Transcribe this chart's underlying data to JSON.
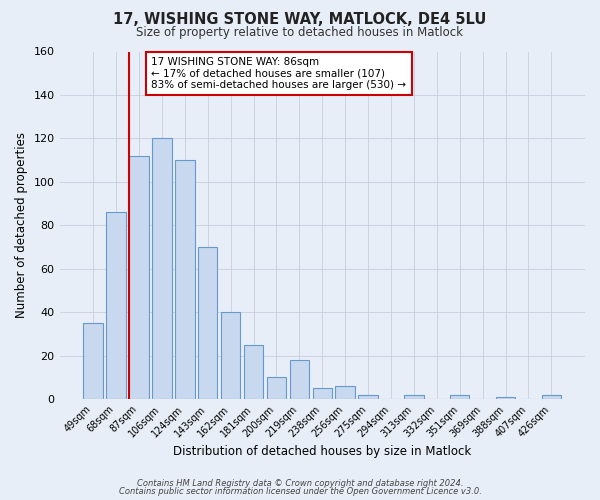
{
  "title": "17, WISHING STONE WAY, MATLOCK, DE4 5LU",
  "subtitle": "Size of property relative to detached houses in Matlock",
  "xlabel": "Distribution of detached houses by size in Matlock",
  "ylabel": "Number of detached properties",
  "bar_labels": [
    "49sqm",
    "68sqm",
    "87sqm",
    "106sqm",
    "124sqm",
    "143sqm",
    "162sqm",
    "181sqm",
    "200sqm",
    "219sqm",
    "238sqm",
    "256sqm",
    "275sqm",
    "294sqm",
    "313sqm",
    "332sqm",
    "351sqm",
    "369sqm",
    "388sqm",
    "407sqm",
    "426sqm"
  ],
  "bar_values": [
    35,
    86,
    112,
    120,
    110,
    70,
    40,
    25,
    10,
    18,
    5,
    6,
    2,
    0,
    2,
    0,
    2,
    0,
    1,
    0,
    2
  ],
  "bar_color": "#c8d8ee",
  "bar_edge_color": "#6699cc",
  "background_color": "#e8eef8",
  "grid_color": "#c8cede",
  "vline_x_index": 2,
  "vline_color": "#cc0000",
  "annotation_line1": "17 WISHING STONE WAY: 86sqm",
  "annotation_line2": "← 17% of detached houses are smaller (107)",
  "annotation_line3": "83% of semi-detached houses are larger (530) →",
  "annotation_box_color": "#ffffff",
  "annotation_box_edge": "#cc0000",
  "footer1": "Contains HM Land Registry data © Crown copyright and database right 2024.",
  "footer2": "Contains public sector information licensed under the Open Government Licence v3.0.",
  "ylim": [
    0,
    160
  ],
  "yticks": [
    0,
    20,
    40,
    60,
    80,
    100,
    120,
    140,
    160
  ]
}
